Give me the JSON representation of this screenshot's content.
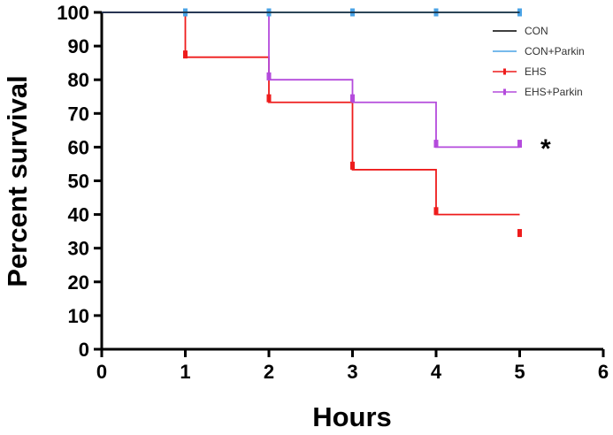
{
  "chart_data": {
    "type": "line",
    "step": true,
    "xlabel": "Hours",
    "ylabel": "Percent survival",
    "xlim": [
      0,
      6
    ],
    "ylim": [
      0,
      100
    ],
    "x_ticks": [
      0,
      1,
      2,
      3,
      4,
      5,
      6
    ],
    "y_ticks": [
      0,
      10,
      20,
      30,
      40,
      50,
      60,
      70,
      80,
      90,
      100
    ],
    "grid": false,
    "legend_position": "top-right",
    "annotation": "*",
    "series": [
      {
        "name": "CON",
        "color": "#000000",
        "x": [
          0,
          1,
          2,
          3,
          4,
          5
        ],
        "y": [
          100,
          100,
          100,
          100,
          100,
          100
        ],
        "censor_marks": []
      },
      {
        "name": "CON+Parkin",
        "color": "#4aa3e6",
        "x": [
          0,
          1,
          2,
          3,
          4,
          5
        ],
        "y": [
          100,
          100,
          100,
          100,
          100,
          100
        ],
        "censor_marks": [
          1,
          2,
          3,
          4,
          5
        ]
      },
      {
        "name": "EHS",
        "color": "#ee1c1c",
        "x": [
          0,
          1,
          2,
          3,
          4,
          5
        ],
        "y": [
          100,
          86.7,
          73.3,
          53.3,
          40,
          40
        ],
        "censor_marks": [
          1,
          2,
          3,
          4,
          5
        ],
        "censor_values": [
          87.5,
          74.5,
          54.5,
          41,
          34.5
        ]
      },
      {
        "name": "EHS+Parkin",
        "color": "#b44bdc",
        "x": [
          0,
          1,
          2,
          3,
          4,
          5
        ],
        "y": [
          100,
          100,
          80,
          73.3,
          60,
          60
        ],
        "censor_marks": [
          2,
          3,
          4,
          5
        ],
        "censor_values": [
          81,
          74.5,
          61,
          61
        ]
      }
    ]
  }
}
